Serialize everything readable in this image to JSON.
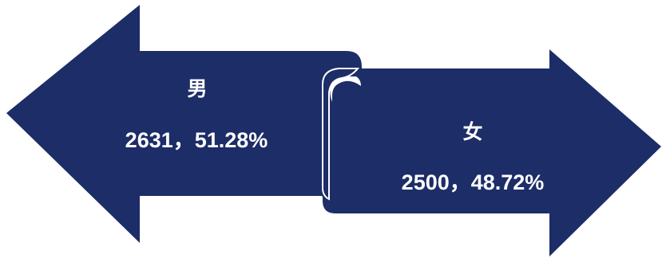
{
  "colors": {
    "arrow_fill": "#1c2d67",
    "fold_shadow": "#0f1a45",
    "text": "#ffffff"
  },
  "male": {
    "label": "男",
    "value": "2631，51.28%"
  },
  "female": {
    "label": "女",
    "value": "2500，48.72%"
  }
}
